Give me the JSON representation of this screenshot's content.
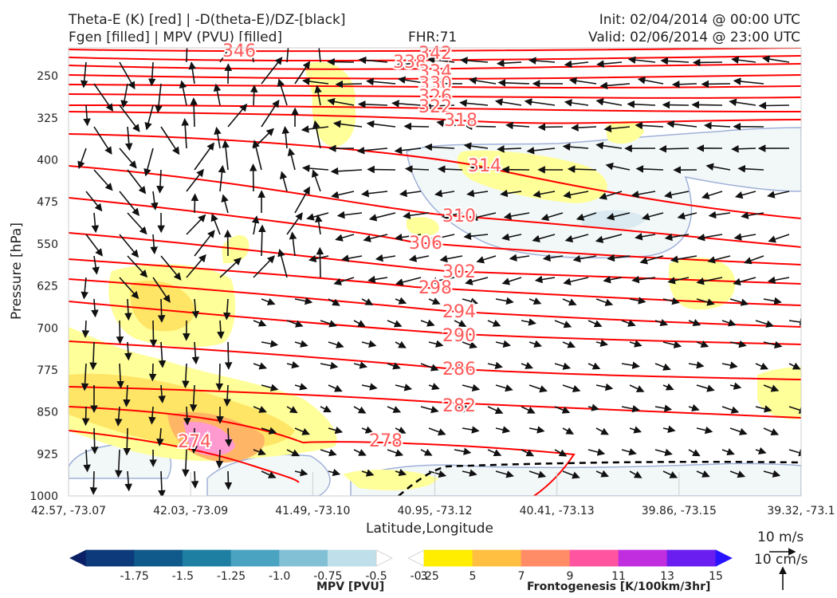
{
  "header": {
    "left_line1": "Theta-E (K) [red] | -D(theta-E)/DZ-[black]",
    "left_line2": "Fgen [filled] | MPV (PVU) [filled]",
    "center": "FHR:71",
    "right_line1": "Init: 02/04/2014 @ 00:00 UTC",
    "right_line2": "Valid: 02/06/2014 @ 23:00 UTC"
  },
  "axes": {
    "xlabel": "Latitude,Longitude",
    "ylabel": "Pressure [hPa]"
  },
  "colors": {
    "theta_e": "#ff0000",
    "theta_e_label": "#ff5a5a",
    "fgen_3": "#ffff99",
    "fgen_5": "#ffe566",
    "mpv_light": "#f2f8f8",
    "mpv_edge": "#9fb0d8"
  },
  "chart_data": {
    "type": "cross-section",
    "ylim": [
      1000,
      200
    ],
    "y_ticks": [
      1000,
      925,
      850,
      775,
      700,
      625,
      550,
      475,
      400,
      325,
      250
    ],
    "x_ticks": [
      "42.57, -73.07",
      "42.03, -73.09",
      "41.49, -73.10",
      "40.95, -73.12",
      "40.41, -73.13",
      "39.86, -73.15",
      "39.32, -73.1"
    ],
    "theta_e_contour_labels": [
      "346",
      "342",
      "338",
      "334",
      "330",
      "326",
      "322",
      "318",
      "314",
      "310",
      "306",
      "302",
      "298",
      "294",
      "290",
      "286",
      "282",
      "278",
      "274"
    ],
    "mpv_colorbar": {
      "label": "MPV [PVU]",
      "ticks": [
        "-1.75",
        "-1.5",
        "-1.25",
        "-1.0",
        "-0.75",
        "-0.5",
        "-0.25"
      ],
      "colors": [
        "#0a1f66",
        "#0d3a7a",
        "#0f5a8a",
        "#1f7fa3",
        "#4aa3c0",
        "#82c0d6",
        "#bfe0ea",
        "#ffffff"
      ]
    },
    "fgen_colorbar": {
      "label": "Frontogenesis [K/100km/3hr]",
      "ticks": [
        "3",
        "5",
        "7",
        "9",
        "11",
        "13",
        "15"
      ],
      "colors": [
        "#ffffff",
        "#ffee00",
        "#ffbf40",
        "#ff8c66",
        "#ff55a0",
        "#c02ee0",
        "#6a1ef0",
        "#2a14ff"
      ]
    },
    "vector_key": {
      "horizontal": "10 m/s",
      "vertical": "10 cm/s"
    }
  }
}
